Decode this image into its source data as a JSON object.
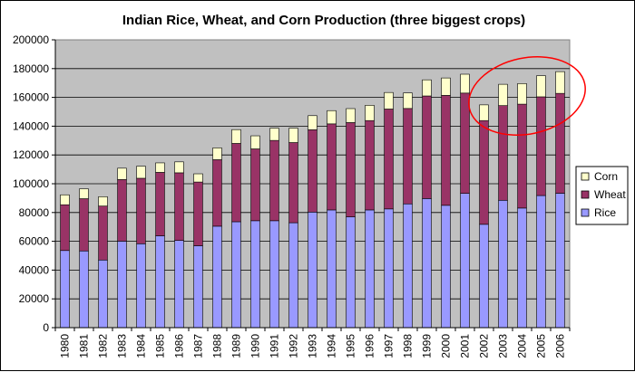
{
  "chart_data": {
    "type": "bar",
    "stacked": true,
    "title": "Indian Rice, Wheat, and Corn Production (three biggest crops)",
    "categories": [
      "1980",
      "1981",
      "1982",
      "1983",
      "1984",
      "1985",
      "1986",
      "1987",
      "1988",
      "1989",
      "1990",
      "1991",
      "1992",
      "1993",
      "1994",
      "1995",
      "1996",
      "1997",
      "1998",
      "1999",
      "2000",
      "2001",
      "2002",
      "2003",
      "2004",
      "2005",
      "2006"
    ],
    "series": [
      {
        "name": "Rice",
        "color": "#9999ff",
        "values": [
          53600,
          53300,
          47000,
          60100,
          58300,
          63800,
          60600,
          56900,
          70500,
          73600,
          74300,
          74300,
          72900,
          80300,
          81800,
          77000,
          81800,
          82500,
          86000,
          89700,
          85000,
          93300,
          71800,
          88500,
          83100,
          91800,
          93400
        ]
      },
      {
        "name": "Wheat",
        "color": "#993366",
        "values": [
          31800,
          36300,
          37500,
          42800,
          45500,
          44100,
          47000,
          44300,
          46200,
          54400,
          49900,
          55800,
          55700,
          57200,
          59800,
          65500,
          62100,
          69400,
          66300,
          71300,
          76400,
          69700,
          72100,
          65800,
          72200,
          68600,
          69400
        ]
      },
      {
        "name": "Corn",
        "color": "#ffffcc",
        "values": [
          6900,
          6900,
          6500,
          7900,
          8400,
          6600,
          7600,
          5700,
          8200,
          9600,
          9100,
          8500,
          10000,
          9800,
          9200,
          9700,
          10600,
          11500,
          10800,
          11200,
          12100,
          13100,
          10900,
          14800,
          14300,
          14700,
          15100
        ]
      }
    ],
    "ylim": [
      0,
      200000
    ],
    "yticks": [
      "0",
      "20000",
      "40000",
      "60000",
      "80000",
      "100000",
      "120000",
      "140000",
      "160000",
      "180000",
      "200000"
    ],
    "grid": true,
    "legend_position": "right",
    "plot_background": "#c0c0c0",
    "annotation": {
      "shape": "ellipse",
      "color": "#ff0000",
      "highlights": [
        "2002",
        "2003",
        "2004",
        "2005",
        "2006"
      ]
    }
  }
}
